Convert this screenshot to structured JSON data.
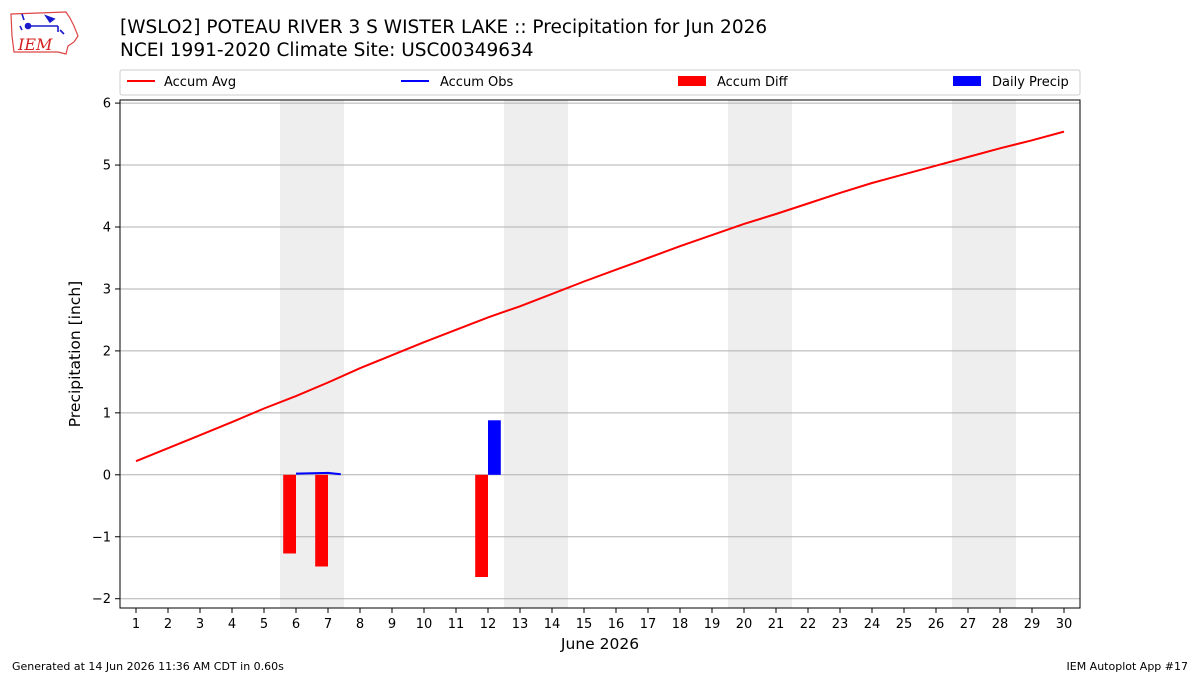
{
  "logo": {
    "text": "IEM"
  },
  "header": {
    "title": "[WSLO2] POTEAU RIVER 3 S WISTER LAKE :: Precipitation for Jun 2026",
    "subtitle": "NCEI 1991-2020 Climate Site: USC00349634"
  },
  "footer": {
    "generated": "Generated at 14 Jun 2026 11:36 AM CDT in 0.60s",
    "app": "IEM Autoplot App #17"
  },
  "colors": {
    "accum_avg": "#ff0000",
    "accum_obs": "#0000ff",
    "accum_diff": "#ff0000",
    "daily_precip": "#0000ff",
    "weekend_shade": "#eeeeee",
    "grid": "#b0b0b0"
  },
  "chart_data": {
    "type": "bar",
    "xlabel": "June 2026",
    "ylabel": "Precipitation [inch]",
    "xlim": [
      0.5,
      30.5
    ],
    "ylim": [
      -2.15,
      6.05
    ],
    "x_ticks": [
      1,
      2,
      3,
      4,
      5,
      6,
      7,
      8,
      9,
      10,
      11,
      12,
      13,
      14,
      15,
      16,
      17,
      18,
      19,
      20,
      21,
      22,
      23,
      24,
      25,
      26,
      27,
      28,
      29,
      30
    ],
    "y_ticks": [
      -2,
      -1,
      0,
      1,
      2,
      3,
      4,
      5,
      6
    ],
    "y_tick_labels": [
      "−2",
      "−1",
      "0",
      "1",
      "2",
      "3",
      "4",
      "5",
      "6"
    ],
    "grid": "horizontal",
    "legend": {
      "position": "top",
      "entries": [
        "Accum Avg",
        "Accum Obs",
        "Accum Diff",
        "Daily Precip"
      ]
    },
    "weekend_shading": [
      [
        6,
        7
      ],
      [
        13,
        14
      ],
      [
        20,
        21
      ],
      [
        27,
        28
      ]
    ],
    "series": [
      {
        "name": "Accum Avg",
        "kind": "line",
        "x": [
          1,
          2,
          3,
          4,
          5,
          6,
          7,
          8,
          9,
          10,
          11,
          12,
          13,
          14,
          15,
          16,
          17,
          18,
          19,
          20,
          21,
          22,
          23,
          24,
          25,
          26,
          27,
          28,
          29,
          30
        ],
        "values": [
          0.22,
          0.43,
          0.64,
          0.85,
          1.07,
          1.27,
          1.49,
          1.72,
          1.93,
          2.14,
          2.34,
          2.54,
          2.72,
          2.92,
          3.12,
          3.31,
          3.5,
          3.69,
          3.87,
          4.05,
          4.21,
          4.38,
          4.55,
          4.71,
          4.85,
          4.99,
          5.13,
          5.27,
          5.4,
          5.54
        ]
      },
      {
        "name": "Accum Obs",
        "kind": "line",
        "x": [
          6,
          7,
          7.4
        ],
        "values": [
          0.02,
          0.03,
          0.01
        ]
      },
      {
        "name": "Accum Diff",
        "kind": "bar",
        "x": [
          6,
          7,
          12
        ],
        "values": [
          -1.27,
          -1.48,
          -1.65
        ]
      },
      {
        "name": "Daily Precip",
        "kind": "bar",
        "x": [
          12
        ],
        "values": [
          0.88
        ]
      }
    ]
  }
}
